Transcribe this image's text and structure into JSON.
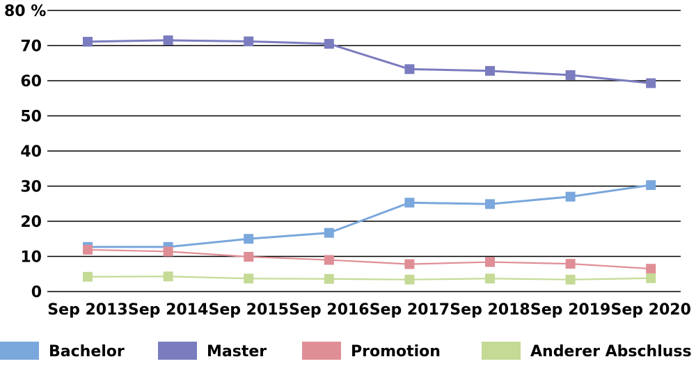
{
  "chart_data": {
    "type": "line",
    "title": "",
    "xlabel": "",
    "ylabel": "",
    "ylim": [
      0,
      80
    ],
    "yticks": [
      0,
      10,
      20,
      30,
      40,
      50,
      60,
      70,
      80
    ],
    "ytick_labels": [
      "0",
      "10",
      "20",
      "30",
      "40",
      "50",
      "60",
      "70",
      "80 %"
    ],
    "grid": true,
    "legend_position": "bottom",
    "categories": [
      "Sep 2013",
      "Sep 2014",
      "Sep 2015",
      "Sep 2016",
      "Sep 2017",
      "Sep 2018",
      "Sep 2019",
      "Sep 2020"
    ],
    "series": [
      {
        "name": "Bachelor",
        "color": "#7aa7dc",
        "values": [
          12.7,
          12.7,
          15.0,
          16.7,
          25.3,
          24.9,
          27.0,
          30.3
        ]
      },
      {
        "name": "Master",
        "color": "#7a7cbf",
        "values": [
          71.1,
          71.5,
          71.2,
          70.5,
          63.3,
          62.8,
          61.6,
          59.3
        ]
      },
      {
        "name": "Promotion",
        "color": "#e08e96",
        "values": [
          11.9,
          11.4,
          9.9,
          9.0,
          7.8,
          8.4,
          7.9,
          6.5
        ]
      },
      {
        "name": "Anderer Abschluss",
        "color": "#c4da95",
        "values": [
          4.2,
          4.3,
          3.7,
          3.6,
          3.4,
          3.7,
          3.4,
          3.8
        ]
      }
    ]
  }
}
